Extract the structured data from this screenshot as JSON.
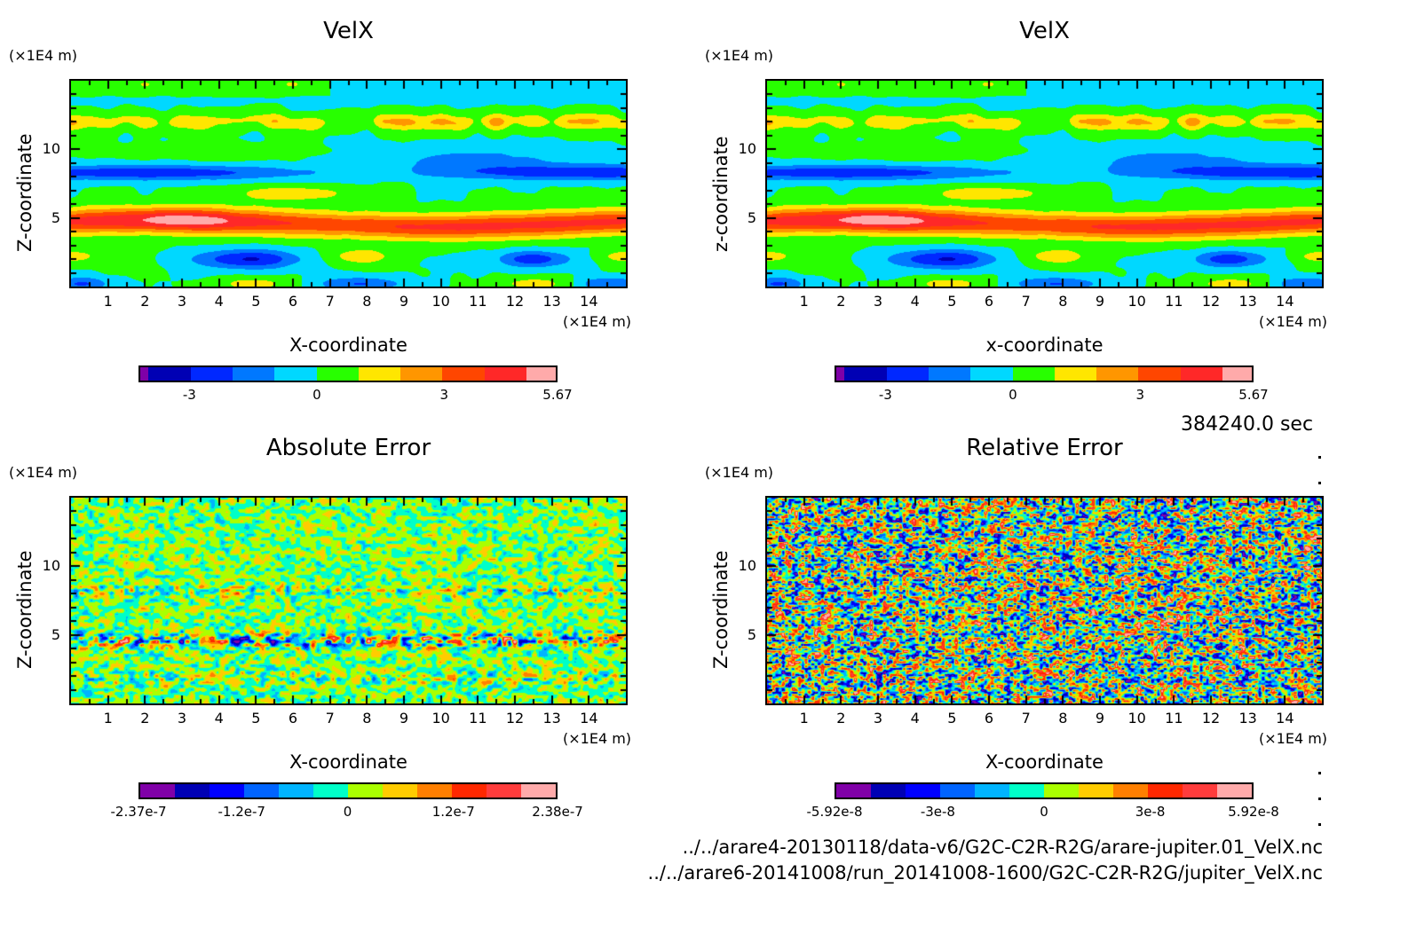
{
  "chart_data": [
    {
      "type": "heatmap",
      "id": "velx-1",
      "title": "VelX",
      "xlabel": "X-coordinate",
      "ylabel": "Z-coordinate",
      "x_unit": "(×1E4 m)",
      "y_unit": "(×1E4 m)",
      "xlim": [
        0,
        15
      ],
      "ylim": [
        0,
        15
      ],
      "xticks": [
        "1",
        "2",
        "3",
        "4",
        "5",
        "6",
        "7",
        "8",
        "9",
        "10",
        "11",
        "12",
        "13",
        "14"
      ],
      "yticks": [
        "5",
        "10"
      ],
      "colorbar": {
        "colors": [
          "#7f00a8",
          "#0000b4",
          "#0028ff",
          "#0078ff",
          "#00d8ff",
          "#28ff00",
          "#ffe600",
          "#ff9600",
          "#ff4600",
          "#ff2828",
          "#ffaaaa"
        ],
        "widths": [
          0.2,
          1,
          1,
          1,
          1,
          1,
          1,
          1,
          1,
          1,
          0.7
        ],
        "ticks": [
          "-3",
          "0",
          "3",
          "5.67"
        ],
        "tick_values": [
          -3,
          0,
          3,
          5.67
        ],
        "range": [
          -4.2,
          5.67
        ]
      },
      "field": "velx"
    },
    {
      "type": "heatmap",
      "id": "velx-2",
      "title": "VelX",
      "xlabel": "x-coordinate",
      "ylabel": "z-coordinate",
      "x_unit": "(×1E4 m)",
      "y_unit": "(×1E4 m)",
      "xlim": [
        0,
        15
      ],
      "ylim": [
        0,
        15
      ],
      "xticks": [
        "1",
        "2",
        "3",
        "4",
        "5",
        "6",
        "7",
        "8",
        "9",
        "10",
        "11",
        "12",
        "13",
        "14"
      ],
      "yticks": [
        "5",
        "10"
      ],
      "colorbar": {
        "colors": [
          "#7f00a8",
          "#0000b4",
          "#0028ff",
          "#0078ff",
          "#00d8ff",
          "#28ff00",
          "#ffe600",
          "#ff9600",
          "#ff4600",
          "#ff2828",
          "#ffaaaa"
        ],
        "widths": [
          0.2,
          1,
          1,
          1,
          1,
          1,
          1,
          1,
          1,
          1,
          0.7
        ],
        "ticks": [
          "-3",
          "0",
          "3",
          "5.67"
        ],
        "tick_values": [
          -3,
          0,
          3,
          5.67
        ],
        "range": [
          -4.2,
          5.67
        ]
      },
      "field": "velx"
    },
    {
      "type": "heatmap",
      "id": "abs-error",
      "title": "Absolute Error",
      "xlabel": "X-coordinate",
      "ylabel": "Z-coordinate",
      "x_unit": "(×1E4 m)",
      "y_unit": "(×1E4 m)",
      "xlim": [
        0,
        15
      ],
      "ylim": [
        0,
        15
      ],
      "xticks": [
        "1",
        "2",
        "3",
        "4",
        "5",
        "6",
        "7",
        "8",
        "9",
        "10",
        "11",
        "12",
        "13",
        "14"
      ],
      "yticks": [
        "5",
        "10"
      ],
      "colorbar": {
        "colors": [
          "#8000a8",
          "#0000b4",
          "#0000ff",
          "#0064ff",
          "#00b4ff",
          "#00ffc8",
          "#aaff00",
          "#ffcc00",
          "#ff7f00",
          "#ff2800",
          "#ff3c3c",
          "#ffaaaa"
        ],
        "widths": [
          1,
          1,
          1,
          1,
          1,
          1,
          1,
          1,
          1,
          1,
          1,
          1
        ],
        "ticks": [
          "-2.37e-7",
          "-1.2e-7",
          "0",
          "1.2e-7",
          "2.38e-7"
        ],
        "tick_values": [
          -2.37e-07,
          -1.2e-07,
          0,
          1.2e-07,
          2.38e-07
        ],
        "range": [
          -2.37e-07,
          2.38e-07
        ]
      },
      "field": "abserr"
    },
    {
      "type": "heatmap",
      "id": "rel-error",
      "title": "Relative Error",
      "xlabel": "X-coordinate",
      "ylabel": "Z-coordinate",
      "x_unit": "(×1E4 m)",
      "y_unit": "(×1E4 m)",
      "xlim": [
        0,
        15
      ],
      "ylim": [
        0,
        15
      ],
      "xticks": [
        "1",
        "2",
        "3",
        "4",
        "5",
        "6",
        "7",
        "8",
        "9",
        "10",
        "11",
        "12",
        "13",
        "14"
      ],
      "yticks": [
        "5",
        "10"
      ],
      "colorbar": {
        "colors": [
          "#8000a8",
          "#0000b4",
          "#0000ff",
          "#0064ff",
          "#00b4ff",
          "#00ffc8",
          "#aaff00",
          "#ffcc00",
          "#ff7f00",
          "#ff2800",
          "#ff3c3c",
          "#ffaaaa"
        ],
        "widths": [
          1,
          1,
          1,
          1,
          1,
          1,
          1,
          1,
          1,
          1,
          1,
          1
        ],
        "ticks": [
          "-5.92e-8",
          "-3e-8",
          "0",
          "3e-8",
          "5.92e-8"
        ],
        "tick_values": [
          -5.92e-08,
          -3e-08,
          0,
          3e-08,
          5.92e-08
        ],
        "range": [
          -5.92e-08,
          5.92e-08
        ]
      },
      "field": "relerr"
    }
  ],
  "time_label": "384240.0 sec",
  "files": [
    "../../arare4-20130118/data-v6/G2C-C2R-R2G/arare-jupiter.01_VelX.nc",
    "../../arare6-20141008/run_20141008-1600/G2C-C2R-R2G/jupiter_VelX.nc"
  ]
}
